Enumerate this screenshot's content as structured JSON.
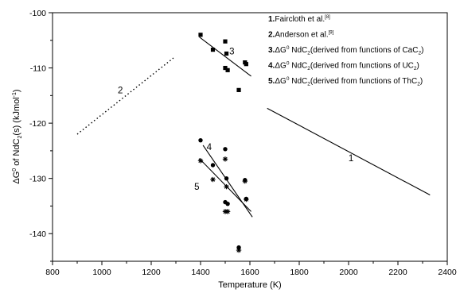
{
  "chart_data": {
    "type": "scatter",
    "xlabel": "Temperature (K)",
    "ylabel_parts": {
      "main": "ΔG",
      "sup": "0",
      "mid": " of NdC",
      "sub": "2",
      "tail": "(s) (kJmol",
      "sup2": "-1",
      "close": ")"
    },
    "xlim": [
      800,
      2400
    ],
    "ylim": [
      -145,
      -100
    ],
    "xticks": [
      800,
      1000,
      1200,
      1400,
      1600,
      1800,
      2000,
      2200,
      2400
    ],
    "yticks": [
      -100,
      -110,
      -120,
      -130,
      -140
    ],
    "legend": {
      "placement": "top-right",
      "items": [
        {
          "num": "1.",
          "text": "Faircloth et al.",
          "ref": "[8]"
        },
        {
          "num": "2.",
          "text": "Anderson et al.",
          "ref": "[9]"
        },
        {
          "num": "3.",
          "pre": "ΔG",
          "sup": "0",
          "mid": " NdC",
          "sub": "2",
          "text": "(derived from functions of CaC",
          "sub2": "2",
          "tail": ")"
        },
        {
          "num": "4.",
          "pre": "ΔG",
          "sup": "0",
          "mid": " NdC",
          "sub": "2",
          "text": "(derived from functions of UC",
          "sub2": "2",
          "tail": ")"
        },
        {
          "num": "5.",
          "pre": "ΔG",
          "sup": "0",
          "mid": " NdC",
          "sub": "2",
          "text": "(derived from functions of ThC",
          "sub2": "2",
          "tail": ")"
        }
      ]
    },
    "lines": [
      {
        "label": "1",
        "style": "solid",
        "x": [
          1670,
          2330
        ],
        "y": [
          -117.3,
          -133.0
        ],
        "label_at": [
          2010,
          -126.3
        ]
      },
      {
        "label": "2",
        "style": "dotted",
        "x": [
          900,
          1290
        ],
        "y": [
          -122.0,
          -108.2
        ],
        "label_at": [
          1075,
          -114.0
        ]
      },
      {
        "label": "3",
        "style": "solid",
        "x": [
          1395,
          1605
        ],
        "y": [
          -104.4,
          -111.5
        ],
        "label_at": [
          1527,
          -107.0
        ]
      },
      {
        "label": "4",
        "style": "solid",
        "x": [
          1410,
          1610
        ],
        "y": [
          -124.0,
          -137.0
        ],
        "label_at": [
          1435,
          -124.3
        ]
      },
      {
        "label": "5",
        "style": "solid",
        "x": [
          1395,
          1605
        ],
        "y": [
          -126.4,
          -136.0
        ],
        "label_at": [
          1385,
          -131.5
        ]
      }
    ],
    "series": [
      {
        "label": "3",
        "marker": "square",
        "points": [
          [
            1400,
            -104.0
          ],
          [
            1450,
            -106.7
          ],
          [
            1500,
            -105.2
          ],
          [
            1505,
            -107.4
          ],
          [
            1500,
            -110.0
          ],
          [
            1510,
            -110.4
          ],
          [
            1555,
            -114.0
          ],
          [
            1580,
            -109.0
          ],
          [
            1585,
            -109.3
          ]
        ]
      },
      {
        "label": "4",
        "marker": "circle",
        "points": [
          [
            1400,
            -123.1
          ],
          [
            1450,
            -127.6
          ],
          [
            1500,
            -124.7
          ],
          [
            1505,
            -130.0
          ],
          [
            1500,
            -134.3
          ],
          [
            1510,
            -134.6
          ],
          [
            1555,
            -142.5
          ],
          [
            1580,
            -130.3
          ],
          [
            1585,
            -133.7
          ]
        ]
      },
      {
        "label": "5",
        "marker": "asterisk",
        "points": [
          [
            1400,
            -126.8
          ],
          [
            1450,
            -130.2
          ],
          [
            1500,
            -126.5
          ],
          [
            1505,
            -131.5
          ],
          [
            1500,
            -136.0
          ],
          [
            1510,
            -136.0
          ],
          [
            1555,
            -143.0
          ],
          [
            1580,
            -130.5
          ],
          [
            1585,
            -133.8
          ]
        ]
      }
    ]
  }
}
